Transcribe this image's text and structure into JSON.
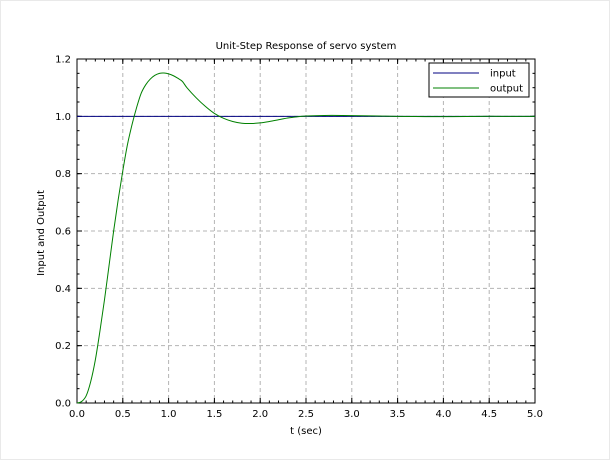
{
  "chart_data": {
    "type": "line",
    "title": "Unit-Step Response of servo system",
    "xlabel": "t (sec)",
    "ylabel": "Input and Output",
    "xlim": [
      0,
      5
    ],
    "ylim": [
      0,
      1.2
    ],
    "grid": true,
    "grid_style": "dashed",
    "legend_position": "top-right",
    "x_ticks": [
      0.0,
      0.5,
      1.0,
      1.5,
      2.0,
      2.5,
      3.0,
      3.5,
      4.0,
      4.5,
      5.0
    ],
    "x_tick_labels": [
      "0.0",
      "0.5",
      "1.0",
      "1.5",
      "2.0",
      "2.5",
      "3.0",
      "3.5",
      "4.0",
      "4.5",
      "5.0"
    ],
    "y_ticks": [
      0.0,
      0.2,
      0.4,
      0.6,
      0.8,
      1.0,
      1.2
    ],
    "y_tick_labels": [
      "0.0",
      "0.2",
      "0.4",
      "0.6",
      "0.8",
      "1.0",
      "1.2"
    ],
    "series": [
      {
        "name": "input",
        "color": "#000080",
        "x": [
          0,
          5
        ],
        "y": [
          1.0,
          1.0
        ]
      },
      {
        "name": "output",
        "color": "#008000",
        "x": [
          0,
          0.05,
          0.1,
          0.15,
          0.2,
          0.25,
          0.3,
          0.35,
          0.4,
          0.45,
          0.5,
          0.55,
          0.6,
          0.65,
          0.7,
          0.75,
          0.8,
          0.85,
          0.9,
          0.95,
          1.0,
          1.05,
          1.1,
          1.15,
          1.2,
          1.3,
          1.4,
          1.5,
          1.6,
          1.7,
          1.8,
          1.9,
          2.0,
          2.1,
          2.2,
          2.3,
          2.4,
          2.5,
          2.7,
          2.9,
          3.1,
          3.3,
          3.5,
          3.8,
          4.1,
          4.4,
          4.7,
          5.0
        ],
        "y": [
          0,
          0.005,
          0.025,
          0.075,
          0.15,
          0.25,
          0.36,
          0.48,
          0.6,
          0.71,
          0.81,
          0.9,
          0.97,
          1.03,
          1.08,
          1.11,
          1.13,
          1.143,
          1.15,
          1.151,
          1.148,
          1.142,
          1.133,
          1.122,
          1.1,
          1.065,
          1.035,
          1.01,
          0.993,
          0.982,
          0.976,
          0.975,
          0.977,
          0.982,
          0.988,
          0.994,
          0.998,
          1.001,
          1.003,
          1.003,
          1.002,
          1.001,
          1.0,
          0.999,
          0.999,
          1.0,
          1.0,
          1.0
        ]
      }
    ]
  }
}
